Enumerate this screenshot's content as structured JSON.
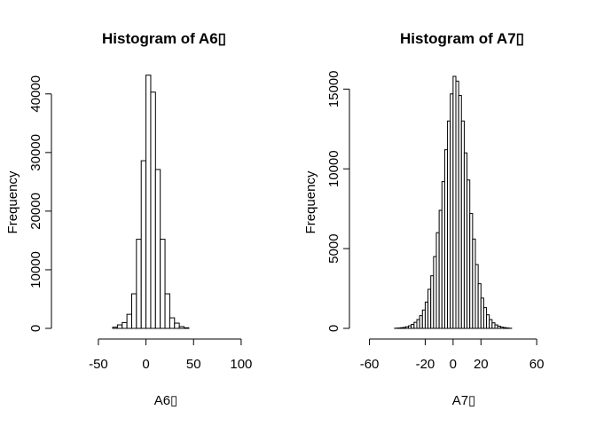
{
  "chart_data": [
    {
      "type": "bar",
      "title": "Histogram of A6▯",
      "xlabel": "A6▯",
      "ylabel": "Frequency",
      "xlim": [
        -90,
        115
      ],
      "ylim": [
        0,
        43000
      ],
      "x_ticks": [
        "-50",
        "0",
        "50",
        "100"
      ],
      "y_ticks": [
        "0",
        "10000",
        "20000",
        "30000",
        "40000"
      ],
      "bins": [
        [
          -35,
          -30,
          200
        ],
        [
          -30,
          -25,
          600
        ],
        [
          -25,
          -20,
          1000
        ],
        [
          -20,
          -15,
          2400
        ],
        [
          -15,
          -10,
          5900
        ],
        [
          -10,
          -5,
          15200
        ],
        [
          -5,
          0,
          28600
        ],
        [
          0,
          5,
          43200
        ],
        [
          5,
          10,
          40300
        ],
        [
          10,
          15,
          27100
        ],
        [
          15,
          20,
          15200
        ],
        [
          20,
          25,
          5900
        ],
        [
          25,
          30,
          1800
        ],
        [
          30,
          35,
          900
        ],
        [
          35,
          40,
          300
        ],
        [
          40,
          45,
          100
        ]
      ]
    },
    {
      "type": "bar",
      "title": "Histogram of A7▯",
      "xlabel": "A7▯",
      "ylabel": "Frequency",
      "xlim": [
        -68,
        72
      ],
      "ylim": [
        0,
        15800
      ],
      "x_ticks": [
        "-60",
        "-20",
        "0",
        "20",
        "60"
      ],
      "y_ticks": [
        "0",
        "5000",
        "10000",
        "15000"
      ],
      "bins": [
        [
          -42,
          -40,
          10
        ],
        [
          -40,
          -38,
          20
        ],
        [
          -38,
          -36,
          40
        ],
        [
          -36,
          -34,
          60
        ],
        [
          -34,
          -32,
          100
        ],
        [
          -32,
          -30,
          160
        ],
        [
          -30,
          -28,
          250
        ],
        [
          -28,
          -26,
          380
        ],
        [
          -26,
          -24,
          550
        ],
        [
          -24,
          -22,
          800
        ],
        [
          -22,
          -20,
          1150
        ],
        [
          -20,
          -18,
          1650
        ],
        [
          -18,
          -16,
          2450
        ],
        [
          -16,
          -14,
          3300
        ],
        [
          -14,
          -12,
          4500
        ],
        [
          -12,
          -10,
          6000
        ],
        [
          -10,
          -8,
          7400
        ],
        [
          -8,
          -6,
          9200
        ],
        [
          -6,
          -4,
          11200
        ],
        [
          -4,
          -2,
          13000
        ],
        [
          -2,
          0,
          14700
        ],
        [
          0,
          2,
          15800
        ],
        [
          2,
          4,
          15500
        ],
        [
          4,
          6,
          14600
        ],
        [
          6,
          8,
          13000
        ],
        [
          8,
          10,
          11000
        ],
        [
          10,
          12,
          9300
        ],
        [
          12,
          14,
          7200
        ],
        [
          14,
          16,
          5600
        ],
        [
          16,
          18,
          4000
        ],
        [
          18,
          20,
          2800
        ],
        [
          20,
          22,
          1900
        ],
        [
          22,
          24,
          1300
        ],
        [
          24,
          26,
          850
        ],
        [
          26,
          28,
          550
        ],
        [
          28,
          30,
          350
        ],
        [
          30,
          32,
          220
        ],
        [
          32,
          34,
          140
        ],
        [
          34,
          36,
          80
        ],
        [
          36,
          38,
          50
        ],
        [
          38,
          40,
          25
        ],
        [
          40,
          42,
          10
        ]
      ]
    }
  ]
}
